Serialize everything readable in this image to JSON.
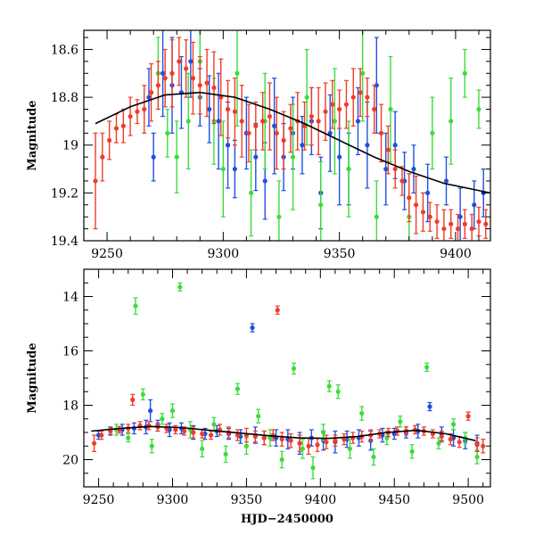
{
  "chart_data": [
    {
      "id": "top",
      "type": "scatter",
      "title": "",
      "xlabel": "",
      "ylabel": "Magnitude",
      "xlim": [
        9240,
        9415
      ],
      "ylim": [
        19.4,
        18.52
      ],
      "y_inverted": true,
      "x_ticks": [
        9250,
        9300,
        9350,
        9400
      ],
      "x_tick_labels": [
        "9250",
        "9300",
        "9350",
        "9400"
      ],
      "x_minor_step": 10,
      "y_ticks": [
        18.6,
        18.8,
        19.0,
        19.2,
        19.4
      ],
      "y_tick_labels": [
        "18.6",
        "18.8",
        "19",
        "19.2",
        "19.4"
      ],
      "y_minor_step": 0.05,
      "grid": false,
      "fit_curve": {
        "name": "Model fit",
        "color": "#000000",
        "x": [
          9245,
          9260,
          9275,
          9290,
          9305,
          9320,
          9335,
          9350,
          9365,
          9380,
          9395,
          9415
        ],
        "y": [
          18.91,
          18.84,
          18.79,
          18.78,
          18.8,
          18.85,
          18.91,
          18.98,
          19.05,
          19.11,
          19.16,
          19.2
        ]
      },
      "series": [
        {
          "name": "Blue",
          "color": "#1f4fe0",
          "x": [
            9268,
            9270,
            9274,
            9278,
            9282,
            9286,
            9290,
            9294,
            9298,
            9302,
            9305,
            9310,
            9314,
            9318,
            9322,
            9326,
            9330,
            9334,
            9338,
            9342,
            9346,
            9350,
            9354,
            9358,
            9362,
            9366,
            9370,
            9374,
            9378,
            9382,
            9388,
            9396,
            9402,
            9408,
            9412
          ],
          "y": [
            18.8,
            19.05,
            18.7,
            18.75,
            18.78,
            18.65,
            18.8,
            18.85,
            18.9,
            19.0,
            19.1,
            18.95,
            19.05,
            19.15,
            18.92,
            19.05,
            18.95,
            19.0,
            18.9,
            19.2,
            18.95,
            19.05,
            19.1,
            18.9,
            19.0,
            18.75,
            19.1,
            19.0,
            19.15,
            19.1,
            19.2,
            19.15,
            19.3,
            19.25,
            19.2
          ],
          "err": [
            0.12,
            0.1,
            0.18,
            0.2,
            0.15,
            0.15,
            0.12,
            0.14,
            0.2,
            0.18,
            0.12,
            0.15,
            0.14,
            0.16,
            0.2,
            0.14,
            0.15,
            0.12,
            0.14,
            0.15,
            0.16,
            0.2,
            0.15,
            0.14,
            0.18,
            0.2,
            0.15,
            0.14,
            0.12,
            0.1,
            0.12,
            0.1,
            0.12,
            0.1,
            0.1
          ]
        },
        {
          "name": "Green",
          "color": "#3cdc3c",
          "x": [
            9272,
            9276,
            9280,
            9285,
            9290,
            9296,
            9300,
            9306,
            9312,
            9318,
            9324,
            9330,
            9336,
            9342,
            9348,
            9354,
            9360,
            9366,
            9372,
            9380,
            9390,
            9398,
            9404,
            9410
          ],
          "y": [
            18.7,
            18.95,
            19.05,
            18.9,
            18.65,
            18.9,
            19.1,
            18.7,
            19.2,
            18.9,
            19.3,
            19.05,
            18.8,
            19.25,
            18.9,
            19.1,
            18.7,
            19.3,
            18.85,
            19.3,
            18.95,
            18.9,
            18.7,
            18.85
          ],
          "err": [
            0.15,
            0.1,
            0.15,
            0.2,
            0.15,
            0.18,
            0.2,
            0.22,
            0.18,
            0.2,
            0.15,
            0.22,
            0.2,
            0.18,
            0.22,
            0.2,
            0.2,
            0.15,
            0.22,
            0.18,
            0.15,
            0.18,
            0.1,
            0.08
          ]
        },
        {
          "name": "Red",
          "color": "#f03c28",
          "x": [
            9245,
            9248,
            9251,
            9254,
            9257,
            9260,
            9263,
            9266,
            9269,
            9272,
            9275,
            9278,
            9281,
            9284,
            9287,
            9290,
            9293,
            9296,
            9299,
            9302,
            9305,
            9308,
            9311,
            9314,
            9317,
            9320,
            9323,
            9326,
            9329,
            9332,
            9335,
            9338,
            9341,
            9344,
            9347,
            9350,
            9353,
            9356,
            9359,
            9362,
            9365,
            9368,
            9371,
            9374,
            9377,
            9380,
            9383,
            9386,
            9389,
            9392,
            9395,
            9398,
            9401,
            9404,
            9407,
            9410,
            9413
          ],
          "y": [
            19.15,
            19.05,
            18.98,
            18.93,
            18.92,
            18.88,
            18.86,
            18.85,
            18.78,
            18.75,
            18.72,
            18.7,
            18.65,
            18.68,
            18.72,
            18.75,
            18.74,
            18.76,
            18.8,
            18.85,
            18.86,
            18.9,
            18.95,
            18.92,
            18.9,
            18.88,
            18.95,
            18.98,
            18.93,
            18.9,
            18.92,
            18.88,
            18.9,
            18.86,
            18.83,
            18.85,
            18.83,
            18.8,
            18.78,
            18.8,
            18.85,
            18.95,
            19.02,
            19.1,
            19.15,
            19.22,
            19.25,
            19.28,
            19.3,
            19.32,
            19.35,
            19.33,
            19.35,
            19.33,
            19.35,
            19.32,
            19.33
          ],
          "err": [
            0.2,
            0.1,
            0.08,
            0.06,
            0.07,
            0.08,
            0.05,
            0.1,
            0.12,
            0.1,
            0.12,
            0.14,
            0.1,
            0.12,
            0.15,
            0.12,
            0.14,
            0.15,
            0.16,
            0.12,
            0.14,
            0.15,
            0.12,
            0.1,
            0.12,
            0.14,
            0.15,
            0.12,
            0.1,
            0.12,
            0.1,
            0.12,
            0.14,
            0.12,
            0.1,
            0.08,
            0.1,
            0.12,
            0.1,
            0.08,
            0.1,
            0.12,
            0.1,
            0.08,
            0.06,
            0.1,
            0.12,
            0.08,
            0.06,
            0.07,
            0.08,
            0.06,
            0.06,
            0.06,
            0.06,
            0.06,
            0.06
          ]
        }
      ]
    },
    {
      "id": "bottom",
      "type": "scatter",
      "title": "",
      "xlabel": "HJD−2450000",
      "ylabel": "Magnitude",
      "xlim": [
        9240,
        9515
      ],
      "ylim": [
        21.0,
        13.0
      ],
      "y_inverted": true,
      "x_ticks": [
        9250,
        9300,
        9350,
        9400,
        9450,
        9500
      ],
      "x_tick_labels": [
        "9250",
        "9300",
        "9350",
        "9400",
        "9450",
        "9500"
      ],
      "x_minor_step": 10,
      "y_ticks": [
        14,
        16,
        18,
        20
      ],
      "y_tick_labels": [
        "14",
        "16",
        "18",
        "20"
      ],
      "y_minor_step": 0.5,
      "grid": false,
      "fit_curve": {
        "name": "Model fit",
        "color": "#000000",
        "x": [
          9245,
          9265,
          9285,
          9305,
          9325,
          9345,
          9365,
          9385,
          9405,
          9425,
          9445,
          9465,
          9485,
          9505
        ],
        "y": [
          18.95,
          18.85,
          18.78,
          18.82,
          18.92,
          19.02,
          19.12,
          19.2,
          19.22,
          19.15,
          19.0,
          18.92,
          19.05,
          19.3
        ]
      },
      "series": [
        {
          "name": "Blue",
          "color": "#1f4fe0",
          "x": [
            9250,
            9258,
            9266,
            9274,
            9282,
            9285,
            9290,
            9298,
            9306,
            9314,
            9322,
            9330,
            9338,
            9346,
            9354,
            9356,
            9362,
            9370,
            9378,
            9386,
            9394,
            9402,
            9410,
            9418,
            9426,
            9434,
            9442,
            9450,
            9458,
            9466,
            9474,
            9482,
            9490,
            9498,
            9506
          ],
          "y": [
            19.1,
            18.95,
            18.9,
            18.85,
            18.8,
            18.2,
            18.75,
            18.9,
            18.85,
            19.0,
            19.05,
            18.95,
            19.05,
            19.15,
            15.15,
            19.1,
            19.2,
            19.2,
            19.25,
            19.4,
            19.2,
            19.3,
            19.35,
            19.25,
            19.2,
            19.3,
            19.1,
            19.05,
            19.0,
            18.95,
            18.05,
            19.05,
            19.2,
            19.3,
            19.4
          ],
          "err": [
            0.15,
            0.15,
            0.2,
            0.2,
            0.25,
            0.4,
            0.2,
            0.25,
            0.2,
            0.25,
            0.2,
            0.2,
            0.2,
            0.25,
            0.15,
            0.3,
            0.25,
            0.3,
            0.35,
            0.4,
            0.3,
            0.35,
            0.4,
            0.3,
            0.3,
            0.35,
            0.25,
            0.2,
            0.2,
            0.25,
            0.15,
            0.25,
            0.3,
            0.3,
            0.3
          ]
        },
        {
          "name": "Green",
          "color": "#3cdc3c",
          "x": [
            9262,
            9270,
            9275,
            9280,
            9286,
            9293,
            9300,
            9305,
            9312,
            9320,
            9328,
            9336,
            9344,
            9350,
            9358,
            9366,
            9374,
            9382,
            9388,
            9395,
            9402,
            9406,
            9412,
            9420,
            9428,
            9436,
            9445,
            9454,
            9462,
            9472,
            9480,
            9490,
            9498,
            9506
          ],
          "y": [
            18.9,
            19.2,
            14.35,
            17.6,
            19.5,
            18.5,
            18.2,
            13.65,
            18.9,
            19.6,
            18.7,
            19.8,
            17.4,
            19.5,
            18.4,
            19.2,
            20.0,
            16.65,
            19.6,
            20.3,
            19.0,
            17.3,
            17.5,
            19.6,
            18.3,
            19.9,
            19.2,
            18.6,
            19.7,
            16.6,
            19.4,
            18.7,
            19.2,
            19.9
          ],
          "err": [
            0.2,
            0.15,
            0.3,
            0.2,
            0.25,
            0.2,
            0.25,
            0.15,
            0.3,
            0.3,
            0.25,
            0.3,
            0.2,
            0.3,
            0.25,
            0.3,
            0.3,
            0.2,
            0.35,
            0.4,
            0.3,
            0.2,
            0.25,
            0.35,
            0.25,
            0.3,
            0.25,
            0.2,
            0.25,
            0.15,
            0.2,
            0.2,
            0.2,
            0.25
          ]
        },
        {
          "name": "Red",
          "color": "#f03c28",
          "x": [
            9247,
            9252,
            9258,
            9264,
            9270,
            9273,
            9278,
            9284,
            9290,
            9296,
            9302,
            9308,
            9314,
            9320,
            9326,
            9332,
            9338,
            9344,
            9350,
            9356,
            9362,
            9368,
            9371,
            9374,
            9380,
            9386,
            9392,
            9398,
            9404,
            9410,
            9416,
            9422,
            9428,
            9434,
            9440,
            9446,
            9452,
            9458,
            9464,
            9470,
            9476,
            9482,
            9488,
            9494,
            9500,
            9506,
            9510
          ],
          "y": [
            19.4,
            19.1,
            18.95,
            18.9,
            18.85,
            17.8,
            18.75,
            18.75,
            18.8,
            18.85,
            18.9,
            18.95,
            19.0,
            19.05,
            19.1,
            18.9,
            19.0,
            19.1,
            19.1,
            19.15,
            19.2,
            19.1,
            14.5,
            19.25,
            19.3,
            19.4,
            19.5,
            19.45,
            19.35,
            19.3,
            19.25,
            19.2,
            19.15,
            19.1,
            19.05,
            19.0,
            18.95,
            18.95,
            18.9,
            18.95,
            19.05,
            19.15,
            19.25,
            19.35,
            18.4,
            19.45,
            19.5
          ],
          "err": [
            0.3,
            0.15,
            0.12,
            0.12,
            0.15,
            0.2,
            0.15,
            0.15,
            0.15,
            0.15,
            0.15,
            0.15,
            0.2,
            0.15,
            0.15,
            0.2,
            0.2,
            0.2,
            0.25,
            0.2,
            0.25,
            0.2,
            0.15,
            0.25,
            0.25,
            0.3,
            0.3,
            0.25,
            0.25,
            0.2,
            0.2,
            0.2,
            0.2,
            0.2,
            0.15,
            0.15,
            0.15,
            0.15,
            0.15,
            0.15,
            0.15,
            0.2,
            0.2,
            0.2,
            0.15,
            0.25,
            0.25
          ]
        }
      ]
    }
  ]
}
